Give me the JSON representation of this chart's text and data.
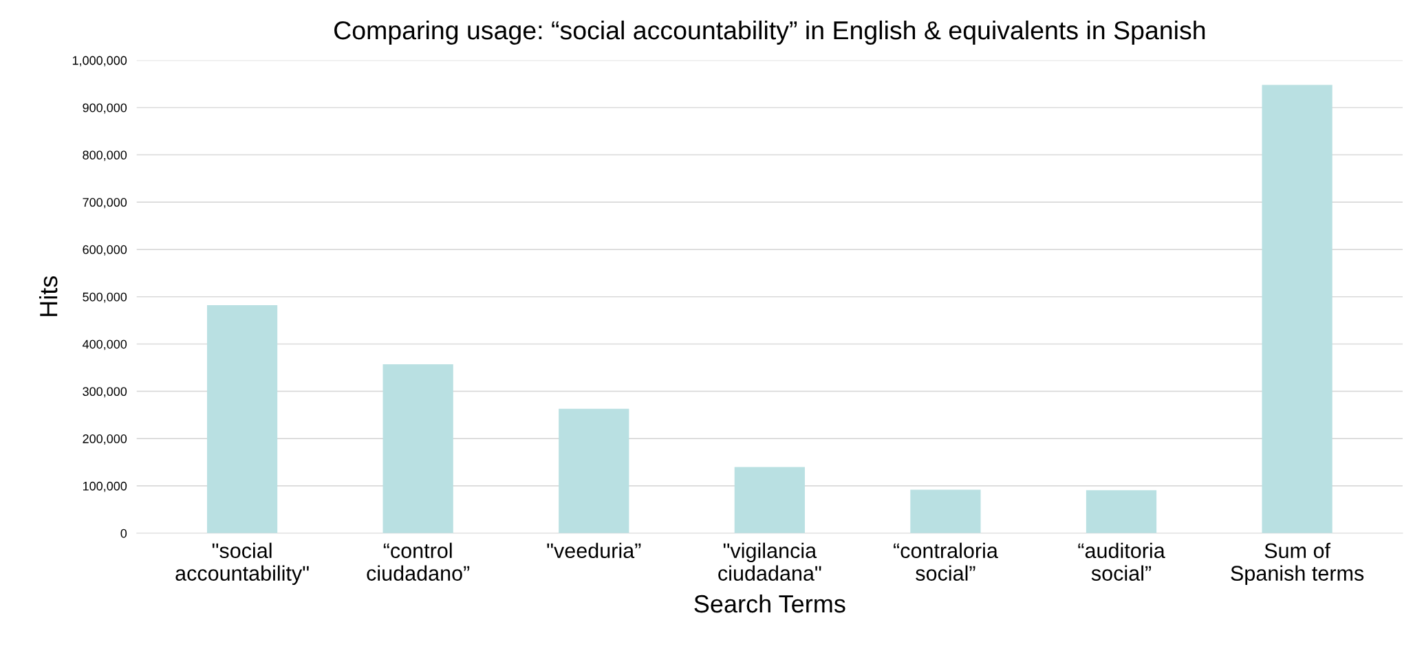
{
  "chart_data": {
    "type": "bar",
    "title": "Comparing usage: “social accountability” in English & equivalents in Spanish",
    "xlabel": "Search Terms",
    "ylabel": "Hits",
    "categories": [
      "\"social\naccountability\"",
      "“control\nciudadano”",
      "\"veeduria”",
      "\"vigilancia\nciudadana\"",
      "“contraloria\nsocial”",
      "“auditoria\nsocial”",
      "Sum of\nSpanish terms"
    ],
    "values": [
      482000,
      357000,
      263000,
      140000,
      92000,
      91000,
      948000
    ],
    "color": "#b9e0e2",
    "ylim": [
      0,
      1000000
    ],
    "yticks": [
      {
        "value": 0,
        "label": "0"
      },
      {
        "value": 100000,
        "label": "100,000"
      },
      {
        "value": 200000,
        "label": "200,000"
      },
      {
        "value": 300000,
        "label": "300,000"
      },
      {
        "value": 400000,
        "label": "400,000"
      },
      {
        "value": 500000,
        "label": "500,000"
      },
      {
        "value": 600000,
        "label": "600,000"
      },
      {
        "value": 700000,
        "label": "700,000"
      },
      {
        "value": 800000,
        "label": "800,000"
      },
      {
        "value": 900000,
        "label": "900,000"
      },
      {
        "value": 1000000,
        "label": "1,000,000"
      }
    ],
    "grid": "y"
  }
}
